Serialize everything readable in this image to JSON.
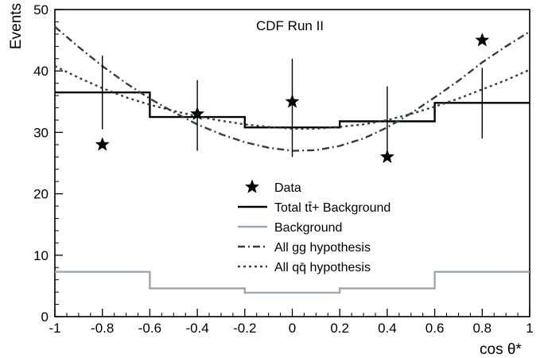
{
  "chart_data": {
    "type": "line",
    "title": "",
    "annotation": "CDF Run II",
    "xlabel": "cos θ*",
    "ylabel": "Events",
    "xlim": [
      -1,
      1
    ],
    "ylim": [
      0,
      50
    ],
    "x_ticks": [
      -1,
      -0.8,
      -0.6,
      -0.4,
      -0.2,
      0,
      0.2,
      0.4,
      0.6,
      0.8,
      1
    ],
    "x_tick_labels": [
      "-1",
      "-0.8",
      "-0.6",
      "-0.4",
      "-0.2",
      "0",
      "0.2",
      "0.4",
      "0.6",
      "0.8",
      "1"
    ],
    "y_ticks": [
      0,
      10,
      20,
      30,
      40,
      50
    ],
    "y_tick_labels": [
      "0",
      "10",
      "20",
      "30",
      "40",
      "50"
    ],
    "grid": false,
    "legend_position": "center",
    "series": [
      {
        "name": "Data",
        "kind": "points",
        "marker": "star",
        "color": "#000000",
        "x": [
          -0.8,
          -0.4,
          0,
          0.4,
          0.8
        ],
        "y": [
          28,
          33,
          35,
          26,
          45
        ],
        "err_low": [
          30.5,
          27,
          26,
          26,
          29
        ],
        "err_high": [
          42.5,
          38.5,
          42,
          37.5,
          40.5
        ]
      },
      {
        "name": "Total tt̄+ Background",
        "kind": "step",
        "color": "#000000",
        "edges": [
          -1,
          -0.6,
          -0.2,
          0.2,
          0.6,
          1
        ],
        "values": [
          36.5,
          32.5,
          30.8,
          31.8,
          34.8
        ]
      },
      {
        "name": "Background",
        "kind": "step",
        "color": "#9aaab4",
        "edges": [
          -1,
          -0.6,
          -0.2,
          0.2,
          0.6,
          1
        ],
        "values": [
          7.3,
          4.6,
          3.9,
          4.6,
          7.3
        ]
      },
      {
        "name": "All gg hypothesis",
        "kind": "curve",
        "style": "dashdot",
        "color": "#2e4048",
        "x": [
          -1,
          -0.9,
          -0.8,
          -0.7,
          -0.6,
          -0.5,
          -0.4,
          -0.3,
          -0.2,
          -0.1,
          0,
          0.1,
          0.2,
          0.3,
          0.4,
          0.5,
          0.6,
          0.7,
          0.8,
          0.9,
          1
        ],
        "y": [
          47.2,
          43.9,
          40.8,
          38.0,
          35.5,
          33.3,
          31.3,
          29.7,
          28.4,
          27.5,
          27.0,
          27.1,
          27.8,
          29.0,
          30.8,
          33.1,
          35.7,
          38.4,
          41.4,
          44.0,
          46.4
        ]
      },
      {
        "name": "All qq̄ hypothesis",
        "kind": "curve",
        "style": "dotted",
        "color": "#2e4048",
        "x": [
          -1,
          -0.9,
          -0.8,
          -0.7,
          -0.6,
          -0.5,
          -0.4,
          -0.3,
          -0.2,
          -0.1,
          0,
          0.1,
          0.2,
          0.3,
          0.4,
          0.5,
          0.6,
          0.7,
          0.8,
          0.9,
          1
        ],
        "y": [
          40.8,
          38.9,
          37.2,
          35.7,
          34.5,
          33.5,
          32.6,
          31.9,
          31.3,
          30.9,
          30.6,
          30.6,
          30.9,
          31.3,
          32.0,
          33.0,
          34.2,
          35.5,
          37.0,
          38.5,
          40.2
        ]
      }
    ],
    "legend": [
      {
        "label": "Data",
        "symbol": "star"
      },
      {
        "label": "Total tt̄+ Background",
        "symbol": "solid",
        "color": "#000000"
      },
      {
        "label": "Background",
        "symbol": "solid",
        "color": "#9aaab4"
      },
      {
        "label": "All gg hypothesis",
        "symbol": "dashdot",
        "color": "#2e4048"
      },
      {
        "label": "All qq̄ hypothesis",
        "symbol": "dotted",
        "color": "#2e4048"
      }
    ]
  }
}
